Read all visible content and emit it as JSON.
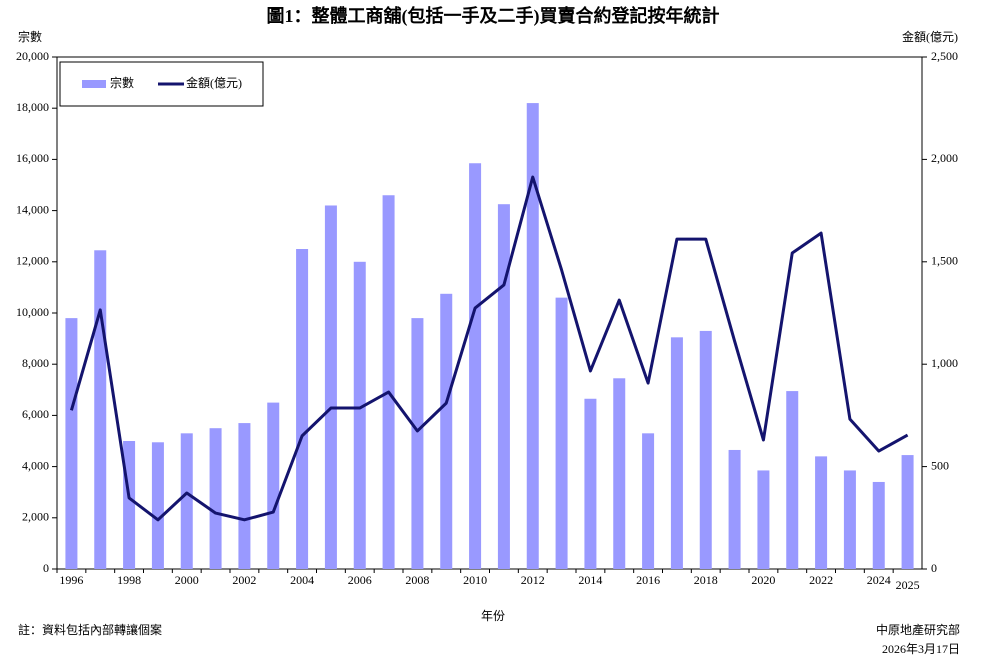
{
  "chart_data": {
    "type": "bar_line",
    "title": "圖1：整體工商舖(包括一手及二手)買賣合約登記按年統計",
    "y_label": "宗數",
    "y2_label": "金額(億元)",
    "x_label": "年份",
    "note": "註：資料包括內部轉讓個案",
    "source": "中原地產研究部",
    "date": "2026年3月17日",
    "categories": [
      "1996",
      null,
      "1998",
      null,
      "2000",
      null,
      "2002",
      null,
      "2004",
      null,
      "2006",
      null,
      "2008",
      null,
      "2010",
      null,
      "2012",
      null,
      "2014",
      null,
      "2016",
      null,
      "2018",
      null,
      "2020",
      null,
      "2022",
      null,
      "2024",
      "2025"
    ],
    "series": [
      {
        "name": "宗數",
        "type": "bar",
        "color": "#9999ff",
        "values": [
          9800,
          12450,
          5000,
          4950,
          5300,
          5500,
          5700,
          6500,
          12500,
          14200,
          12000,
          14600,
          9800,
          10750,
          15850,
          14250,
          18200,
          10600,
          6650,
          7450,
          5300,
          9050,
          9300,
          4650,
          3850,
          6950,
          4400,
          3850,
          3400,
          4450
        ]
      },
      {
        "name": "金額(億元)",
        "type": "line",
        "axis": "y2",
        "color": "#14146e",
        "values": [
          775,
          1265,
          347,
          240,
          371,
          273,
          240,
          278,
          650,
          786,
          786,
          864,
          674,
          810,
          1274,
          1387,
          1914,
          1460,
          967,
          1313,
          908,
          1611,
          1611,
          1113,
          630,
          1543,
          1640,
          732,
          576,
          654
        ]
      }
    ],
    "ylim": [
      0,
      20000
    ],
    "yticks": [
      0,
      {
        "value": 2000,
        "label": "2,000"
      },
      {
        "value": 4000,
        "label": "4,000"
      },
      {
        "value": 6000,
        "label": "6,000"
      },
      {
        "value": 8000,
        "label": "8,000"
      },
      {
        "value": 10000,
        "label": "10,000"
      },
      {
        "value": 12000,
        "label": "12,000"
      },
      {
        "value": 14000,
        "label": "14,000"
      },
      {
        "value": 16000,
        "label": "16,000"
      },
      {
        "value": 18000,
        "label": "18,000"
      },
      {
        "value": 20000,
        "label": "20,000"
      }
    ],
    "y2lim": [
      0,
      2500
    ],
    "y2ticks": [
      0,
      500,
      {
        "value": 1000,
        "label": "1,000"
      },
      {
        "value": 1500,
        "label": "1,500"
      },
      {
        "value": 2000,
        "label": "2,000"
      },
      {
        "value": 2500,
        "label": "2,500"
      }
    ],
    "legend": "upper left",
    "grid": false
  }
}
